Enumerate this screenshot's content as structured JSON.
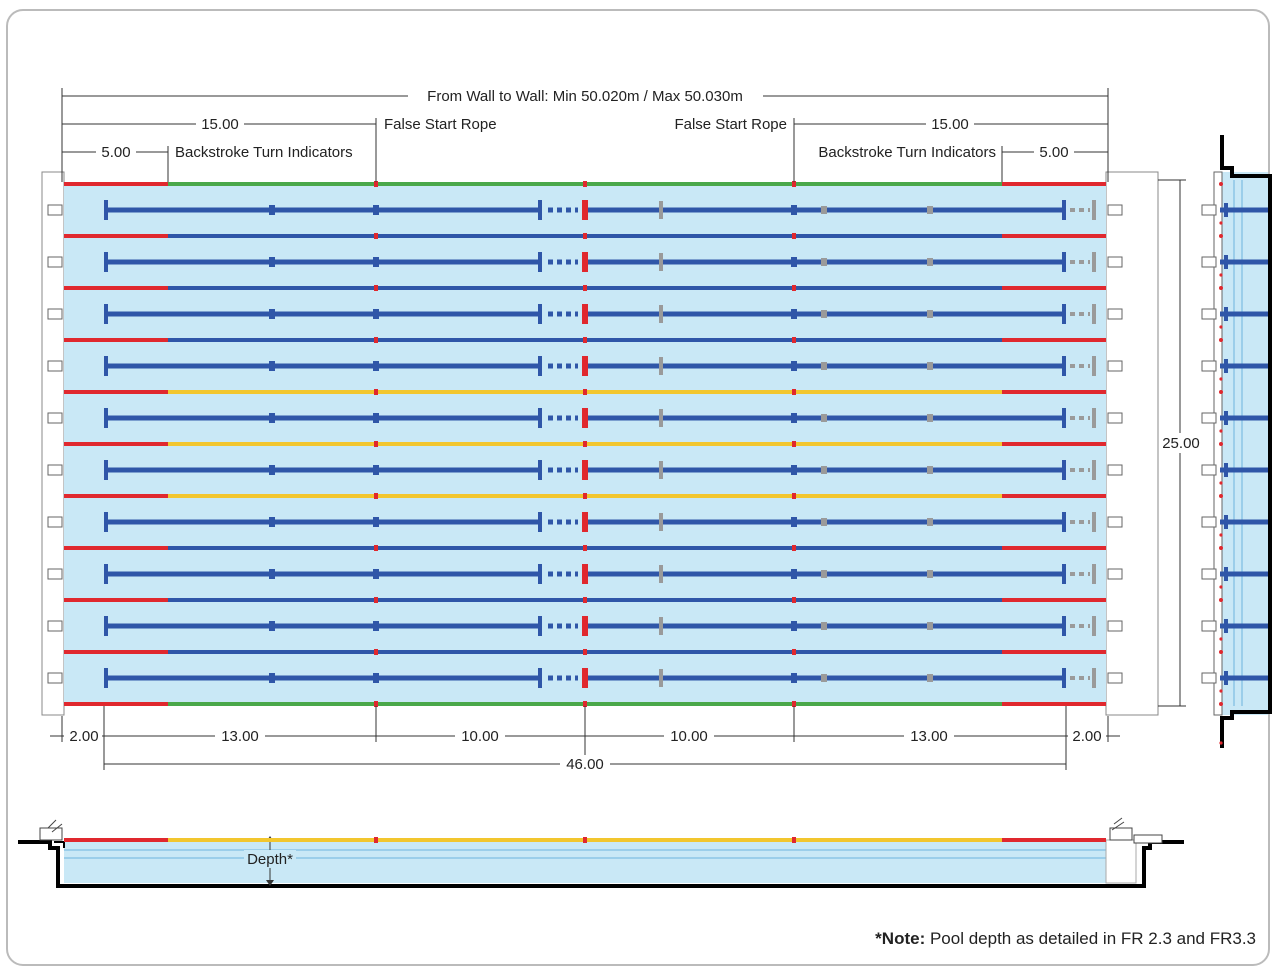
{
  "labels": {
    "wall_to_wall": "From Wall to Wall: Min 50.020m / Max 50.030m",
    "false_start_left": "False Start Rope",
    "false_start_right": "False Start Rope",
    "backstroke_left": "Backstroke Turn Indicators",
    "backstroke_right": "Backstroke Turn Indicators",
    "dim_15_left": "15.00",
    "dim_15_right": "15.00",
    "dim_5_left": "5.00",
    "dim_5_right": "5.00",
    "width": "25.00",
    "bottom_dims": [
      "2.00",
      "13.00",
      "10.00",
      "10.00",
      "13.00",
      "2.00"
    ],
    "total_46": "46.00",
    "depth": "Depth*"
  },
  "note": {
    "bold": "*Note:",
    "text": " Pool depth as detailed in FR 2.3 and FR3.3"
  },
  "pool": {
    "lane_count": 10,
    "rope_colors_center": [
      "green",
      "blue",
      "blue",
      "blue",
      "yellow",
      "yellow",
      "yellow",
      "blue",
      "blue",
      "blue",
      "green"
    ]
  },
  "colors": {
    "water": "#c9e8f6",
    "lane_line": "#2f56a8",
    "rope_red": "#e0282e",
    "rope_green": "#4aa84a",
    "rope_yellow": "#f2c62e",
    "rope_blue": "#2f56a8",
    "grey_marker": "#9a9a9a",
    "frame_border": "#bbbbbb"
  }
}
